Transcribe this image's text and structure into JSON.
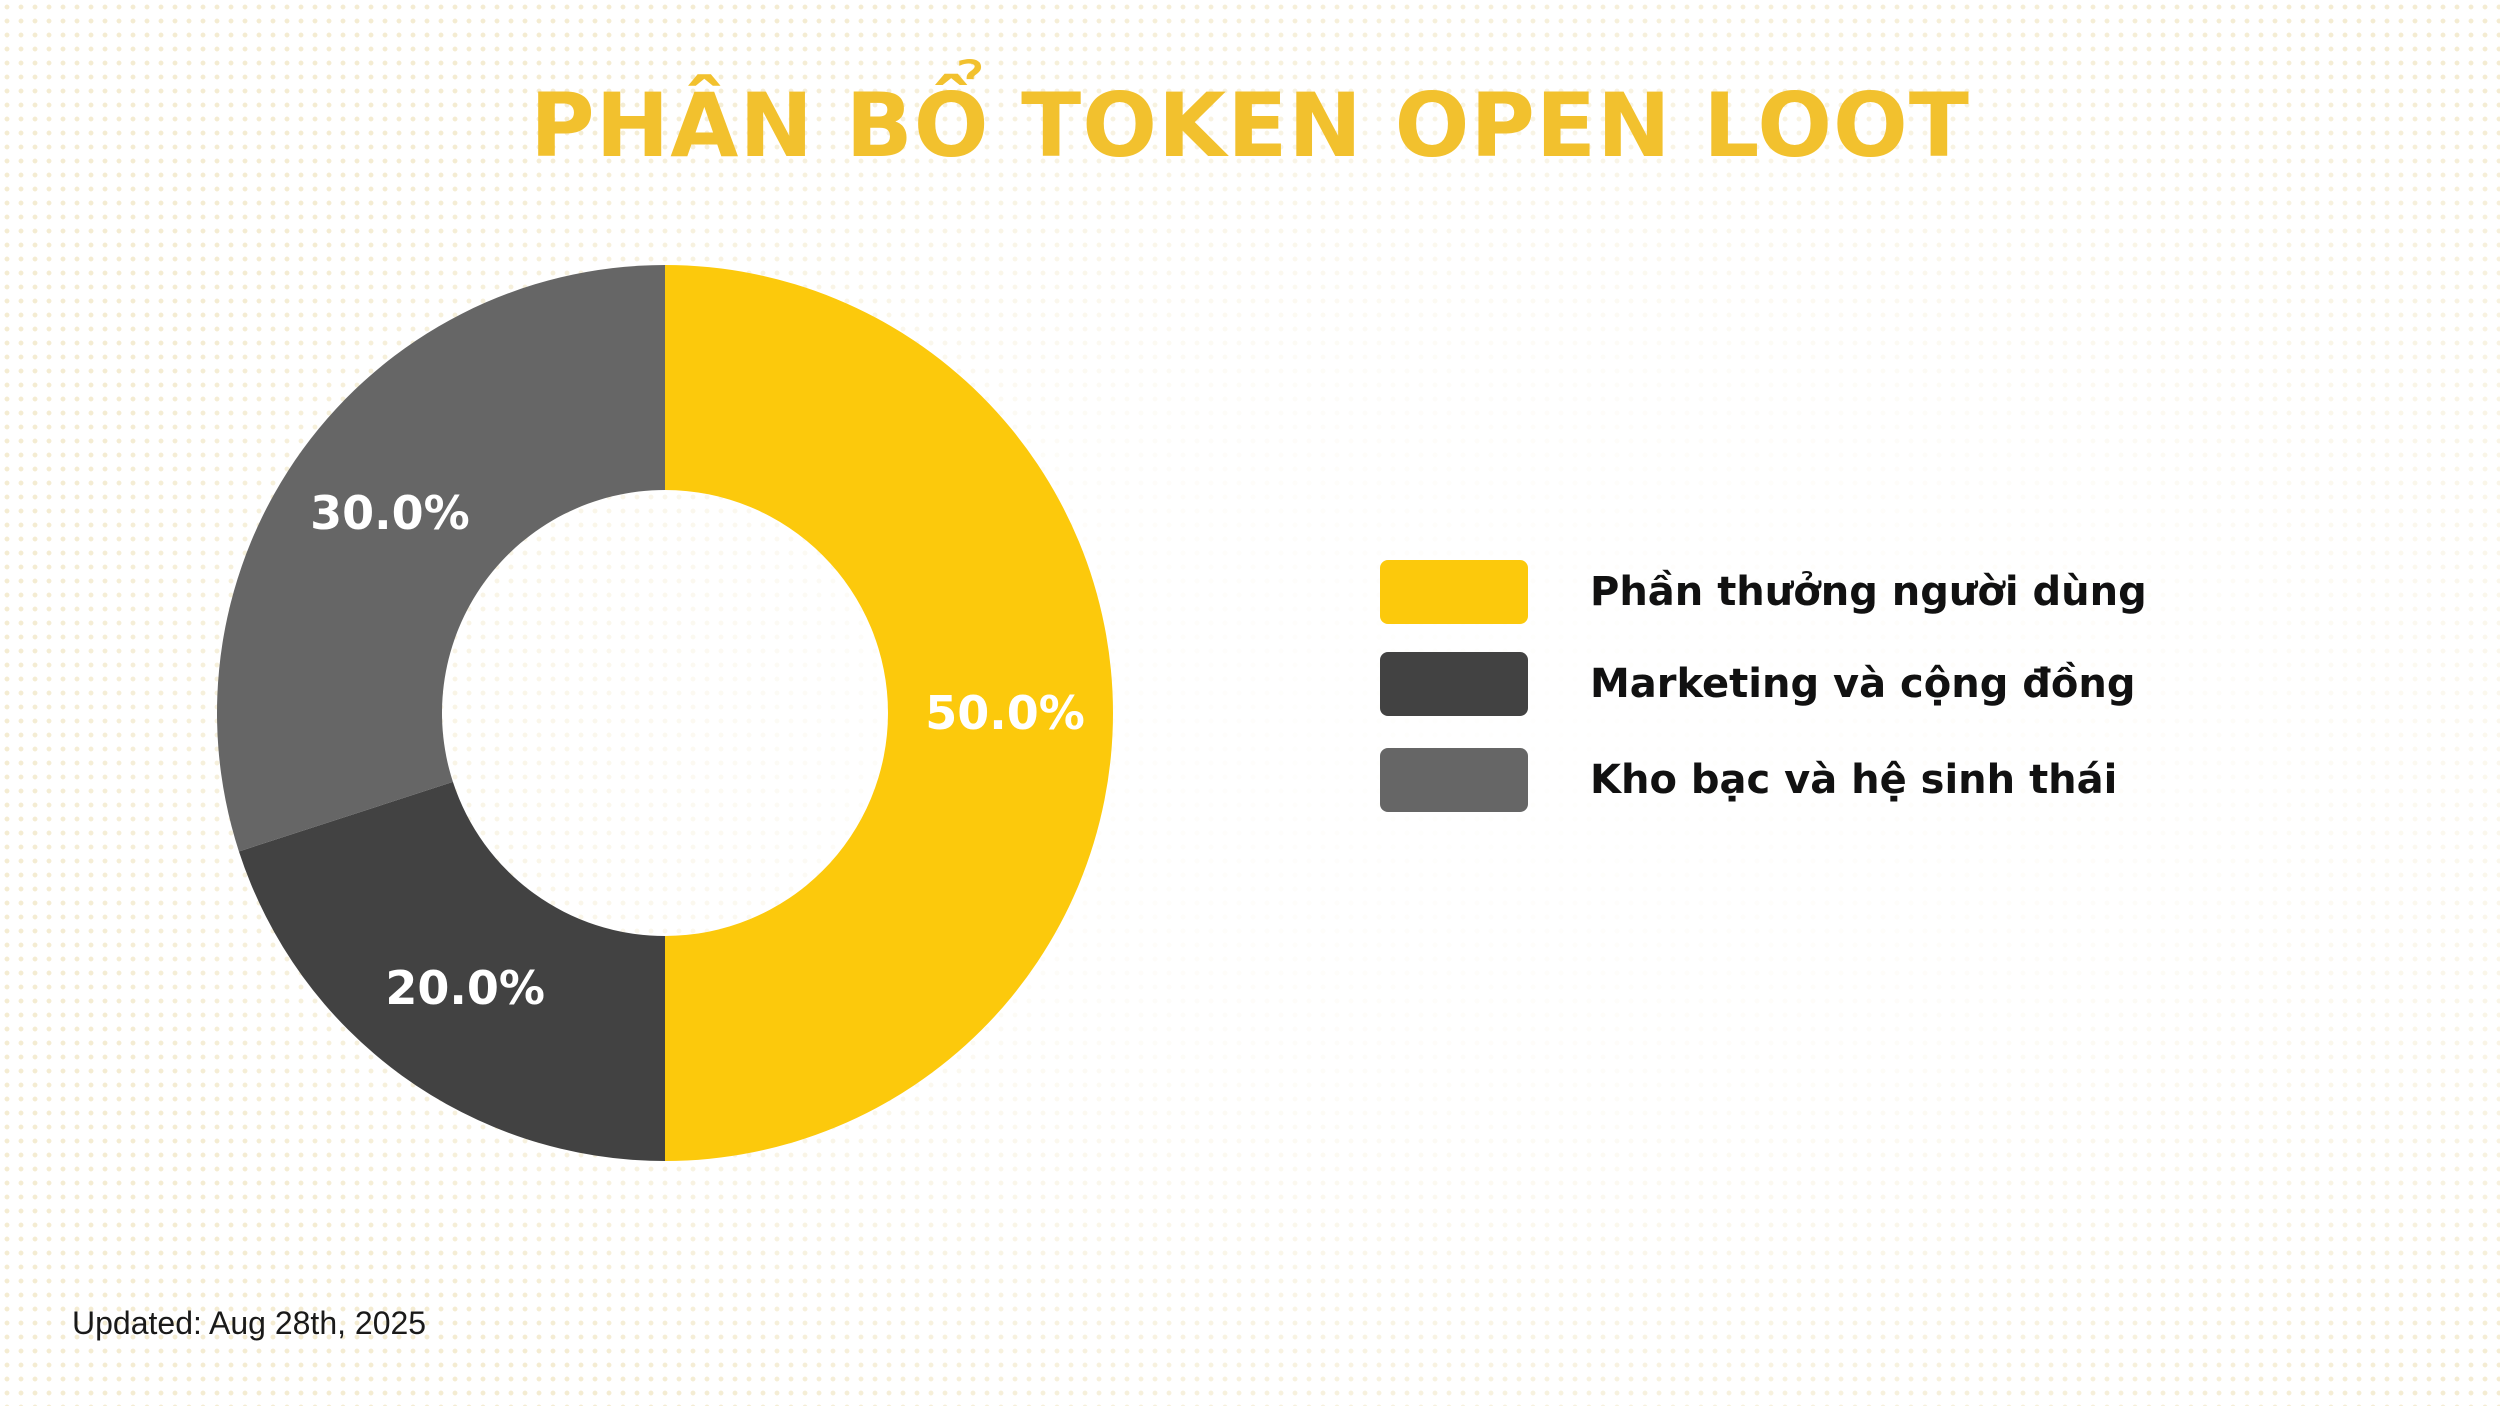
{
  "title": "PHÂN BỔ TOKEN OPEN LOOT",
  "footer": "Updated: Aug 28th, 2025",
  "chart_data": {
    "type": "pie",
    "variant": "donut",
    "title": "PHÂN BỔ TOKEN OPEN LOOT",
    "legend_position": "right",
    "slices": [
      {
        "name": "Phần thưởng người dùng",
        "value": 50.0,
        "label": "50.0%",
        "color": "#fcc90c"
      },
      {
        "name": "Marketing và cộng đồng",
        "value": 20.0,
        "label": "20.0%",
        "color": "#424242"
      },
      {
        "name": "Kho bạc và hệ sinh thái",
        "value": 30.0,
        "label": "30.0%",
        "color": "#666666"
      }
    ]
  }
}
